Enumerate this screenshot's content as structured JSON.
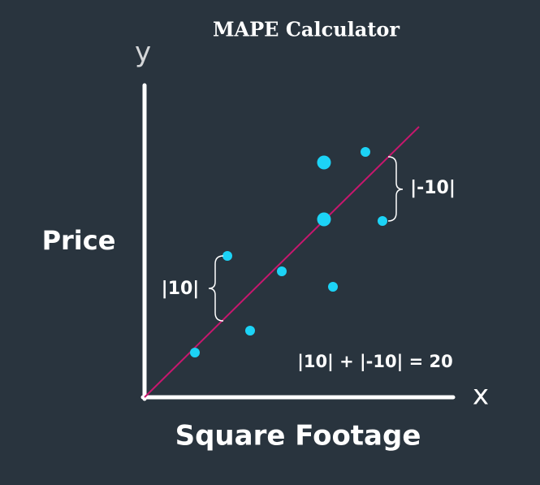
{
  "title": "MAPE Calculator",
  "axes": {
    "y_letter": "y",
    "x_letter": "x",
    "y_label": "Price",
    "x_label": "Square Footage"
  },
  "annotations": {
    "left_error": "|10|",
    "right_error": "|-10|",
    "equation": "|10| + |-10| = 20"
  }
}
